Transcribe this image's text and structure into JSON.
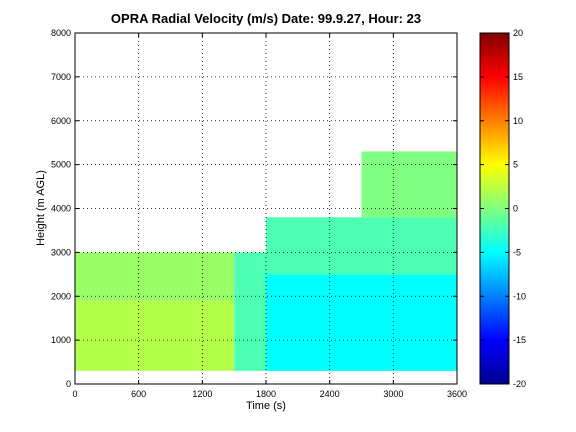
{
  "chart_data": {
    "type": "heatmap",
    "title": "OPRA Radial Velocity (m/s)  Date: 99.9.27, Hour: 23",
    "xlabel": "Time (s)",
    "ylabel": "Height (m AGL)",
    "xlim": [
      0,
      3600
    ],
    "ylim": [
      0,
      8000
    ],
    "xticks": [
      "0",
      "600",
      "1200",
      "1800",
      "2400",
      "3000",
      "3600"
    ],
    "yticks": [
      "0",
      "1000",
      "2000",
      "3000",
      "4000",
      "5000",
      "6000",
      "7000",
      "8000"
    ],
    "grid": "dotted",
    "colorbar": {
      "range": [
        -20,
        20
      ],
      "ticks": [
        "-20",
        "-15",
        "-10",
        "-5",
        "0",
        "5",
        "10",
        "15",
        "20"
      ],
      "colormap": "jet"
    },
    "regions": [
      {
        "t": [
          0,
          1500
        ],
        "h": [
          300,
          1900
        ],
        "velocity": 2
      },
      {
        "t": [
          0,
          1500
        ],
        "h": [
          1900,
          3000
        ],
        "velocity": 1
      },
      {
        "t": [
          1500,
          1800
        ],
        "h": [
          300,
          3000
        ],
        "velocity": -2
      },
      {
        "t": [
          1800,
          3600
        ],
        "h": [
          300,
          2500
        ],
        "velocity": -5
      },
      {
        "t": [
          1800,
          3600
        ],
        "h": [
          2500,
          3800
        ],
        "velocity": -2
      },
      {
        "t": [
          2700,
          3600
        ],
        "h": [
          3800,
          5300
        ],
        "velocity": 0
      }
    ]
  }
}
